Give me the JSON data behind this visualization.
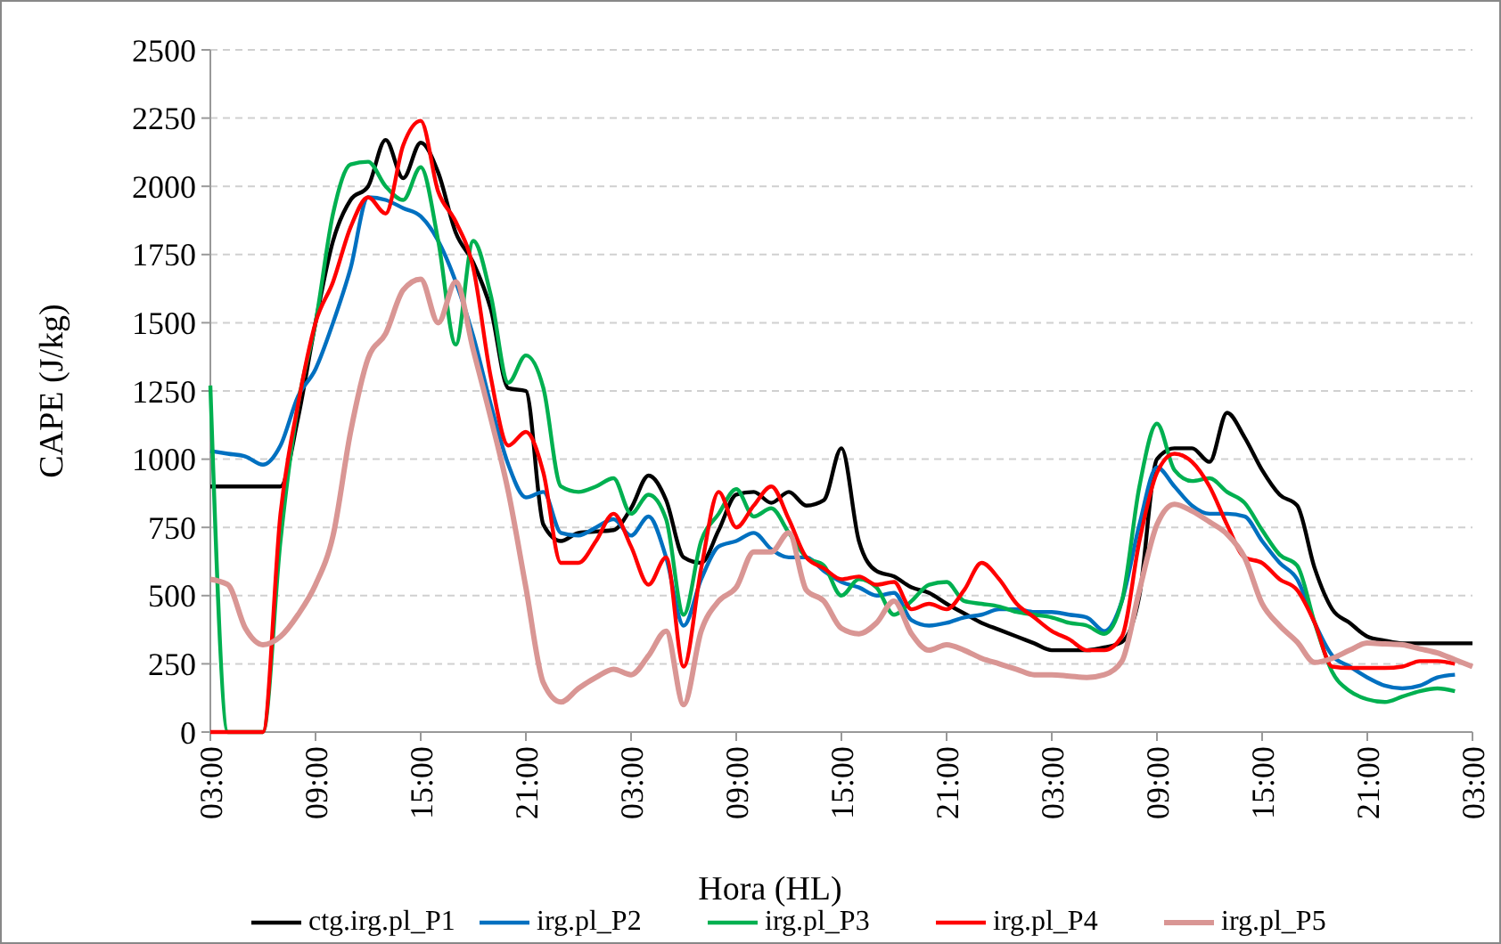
{
  "chart_data": {
    "type": "line",
    "xlabel": "Hora (HL)",
    "ylabel": "CAPE (J/kg)",
    "categories": [
      "03:00",
      null,
      null,
      null,
      null,
      null,
      "09:00",
      null,
      null,
      null,
      null,
      null,
      "15:00",
      null,
      null,
      null,
      null,
      null,
      "21:00",
      null,
      null,
      null,
      null,
      null,
      "03:00",
      null,
      null,
      null,
      null,
      null,
      "09:00",
      null,
      null,
      null,
      null,
      null,
      "15:00",
      null,
      null,
      null,
      null,
      null,
      "21:00",
      null,
      null,
      null,
      null,
      null,
      "03:00",
      null,
      null,
      null,
      null,
      null,
      "09:00",
      null,
      null,
      null,
      null,
      null,
      "15:00",
      null,
      null,
      null,
      null,
      null,
      "21:00",
      null,
      null,
      null,
      null,
      null,
      "03:00"
    ],
    "ylim": [
      0,
      2500
    ],
    "yticks": [
      0,
      250,
      500,
      750,
      1000,
      1250,
      1500,
      1750,
      2000,
      2250,
      2500
    ],
    "grid": "y",
    "legend": "bottom",
    "marker": "none",
    "line_style": "solid",
    "series": [
      {
        "name": "ctg.irg.pl_P1",
        "color": "#000000",
        "values": [
          900,
          900,
          900,
          900,
          900,
          1150,
          1500,
          1800,
          1950,
          2000,
          2170,
          2030,
          2160,
          2050,
          1830,
          1720,
          1550,
          1260,
          1250,
          760,
          700,
          730,
          735,
          740,
          820,
          940,
          850,
          640,
          620,
          740,
          870,
          880,
          840,
          880,
          830,
          850,
          1040,
          700,
          590,
          570,
          530,
          510,
          470,
          435,
          400,
          375,
          350,
          325,
          300,
          300,
          300,
          310,
          330,
          500,
          1000,
          1040,
          1040,
          990,
          1170,
          1080,
          960,
          870,
          830,
          600,
          450,
          400,
          350,
          335,
          325,
          325,
          325,
          325,
          325
        ]
      },
      {
        "name": "irg.pl_P2",
        "color": "#0070c0",
        "values": [
          1030,
          1020,
          1010,
          980,
          1050,
          1230,
          1330,
          1500,
          1700,
          1960,
          1950,
          1920,
          1890,
          1800,
          1650,
          1450,
          1200,
          980,
          860,
          880,
          730,
          720,
          750,
          780,
          720,
          790,
          640,
          390,
          560,
          680,
          700,
          730,
          670,
          640,
          640,
          590,
          550,
          530,
          500,
          510,
          410,
          390,
          400,
          420,
          430,
          450,
          450,
          440,
          440,
          430,
          420,
          370,
          480,
          760,
          970,
          900,
          830,
          800,
          800,
          790,
          700,
          620,
          560,
          400,
          280,
          240,
          200,
          170,
          160,
          170,
          200,
          210,
          null
        ]
      },
      {
        "name": "irg.pl_P3",
        "color": "#00b050",
        "values": [
          1270,
          0,
          0,
          0,
          700,
          1200,
          1500,
          1900,
          2080,
          2090,
          2000,
          1950,
          2070,
          1800,
          1420,
          1800,
          1600,
          1280,
          1380,
          1260,
          900,
          880,
          900,
          930,
          800,
          870,
          780,
          430,
          700,
          800,
          890,
          790,
          820,
          730,
          640,
          610,
          500,
          560,
          530,
          430,
          480,
          540,
          550,
          480,
          470,
          460,
          440,
          430,
          420,
          400,
          390,
          360,
          480,
          900,
          1130,
          960,
          920,
          930,
          880,
          840,
          740,
          650,
          610,
          400,
          220,
          150,
          120,
          110,
          130,
          150,
          160,
          150,
          null
        ]
      },
      {
        "name": "irg.pl_P4",
        "color": "#ff0000",
        "values": [
          0,
          0,
          0,
          0,
          800,
          1200,
          1500,
          1650,
          1850,
          1960,
          1900,
          2150,
          2240,
          1980,
          1870,
          1700,
          1300,
          1050,
          1100,
          950,
          620,
          620,
          700,
          800,
          680,
          540,
          640,
          240,
          600,
          880,
          750,
          830,
          900,
          780,
          640,
          600,
          560,
          570,
          540,
          550,
          450,
          470,
          450,
          520,
          620,
          560,
          470,
          420,
          370,
          340,
          300,
          300,
          350,
          700,
          950,
          1020,
          990,
          900,
          760,
          640,
          620,
          560,
          520,
          400,
          240,
          235,
          235,
          235,
          240,
          260,
          260,
          250,
          null
        ]
      },
      {
        "name": "irg.pl_P5",
        "color": "#d99694",
        "values": [
          560,
          540,
          380,
          320,
          350,
          430,
          540,
          720,
          1100,
          1370,
          1460,
          1620,
          1660,
          1500,
          1650,
          1400,
          1150,
          880,
          530,
          180,
          110,
          160,
          200,
          230,
          210,
          280,
          370,
          100,
          370,
          480,
          530,
          660,
          660,
          730,
          520,
          480,
          380,
          360,
          400,
          480,
          360,
          300,
          320,
          300,
          270,
          250,
          230,
          210,
          210,
          205,
          200,
          210,
          260,
          520,
          760,
          835,
          810,
          770,
          725,
          640,
          470,
          390,
          330,
          255,
          270,
          300,
          326,
          323,
          320,
          305,
          290,
          265,
          240
        ]
      }
    ]
  }
}
